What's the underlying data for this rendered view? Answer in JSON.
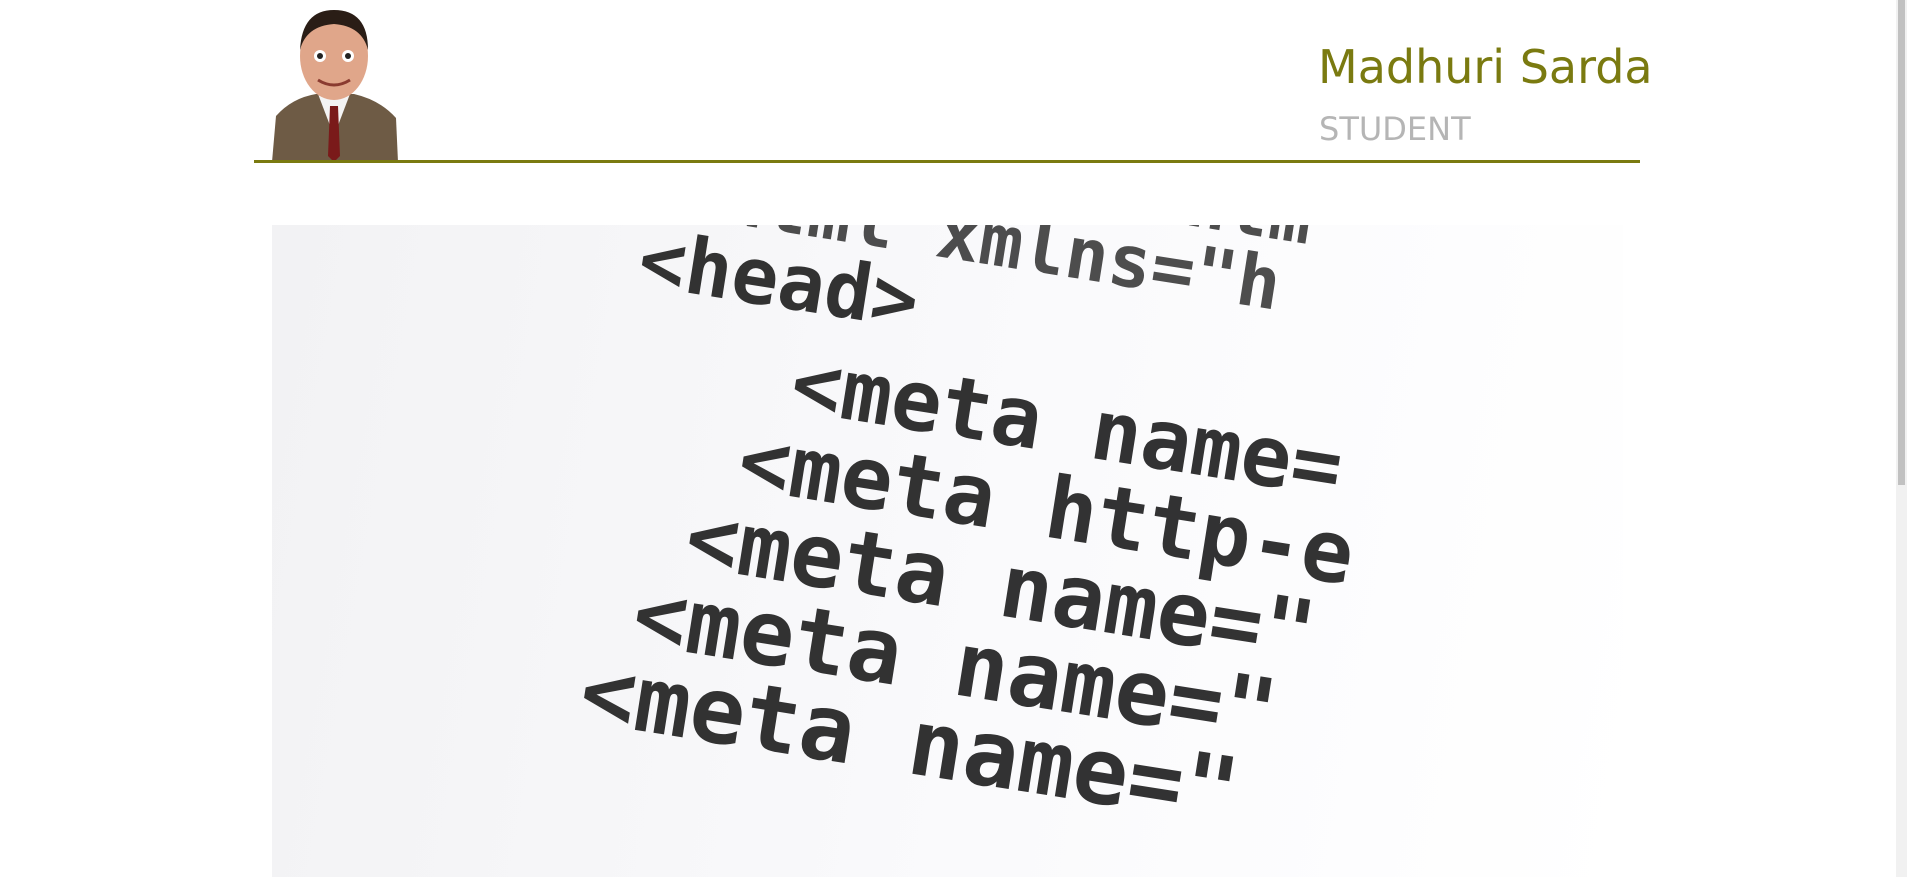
{
  "header": {
    "name": "Madhuri Sarda",
    "role": "STUDENT"
  },
  "hero": {
    "code_lines": [
      "<!DOCTYPE htm",
      "<html xmlns=\"h",
      "<head>",
      "<meta name=",
      "<meta http-e",
      "<meta name=\"",
      "<meta name=\"",
      "<meta name=\""
    ]
  }
}
